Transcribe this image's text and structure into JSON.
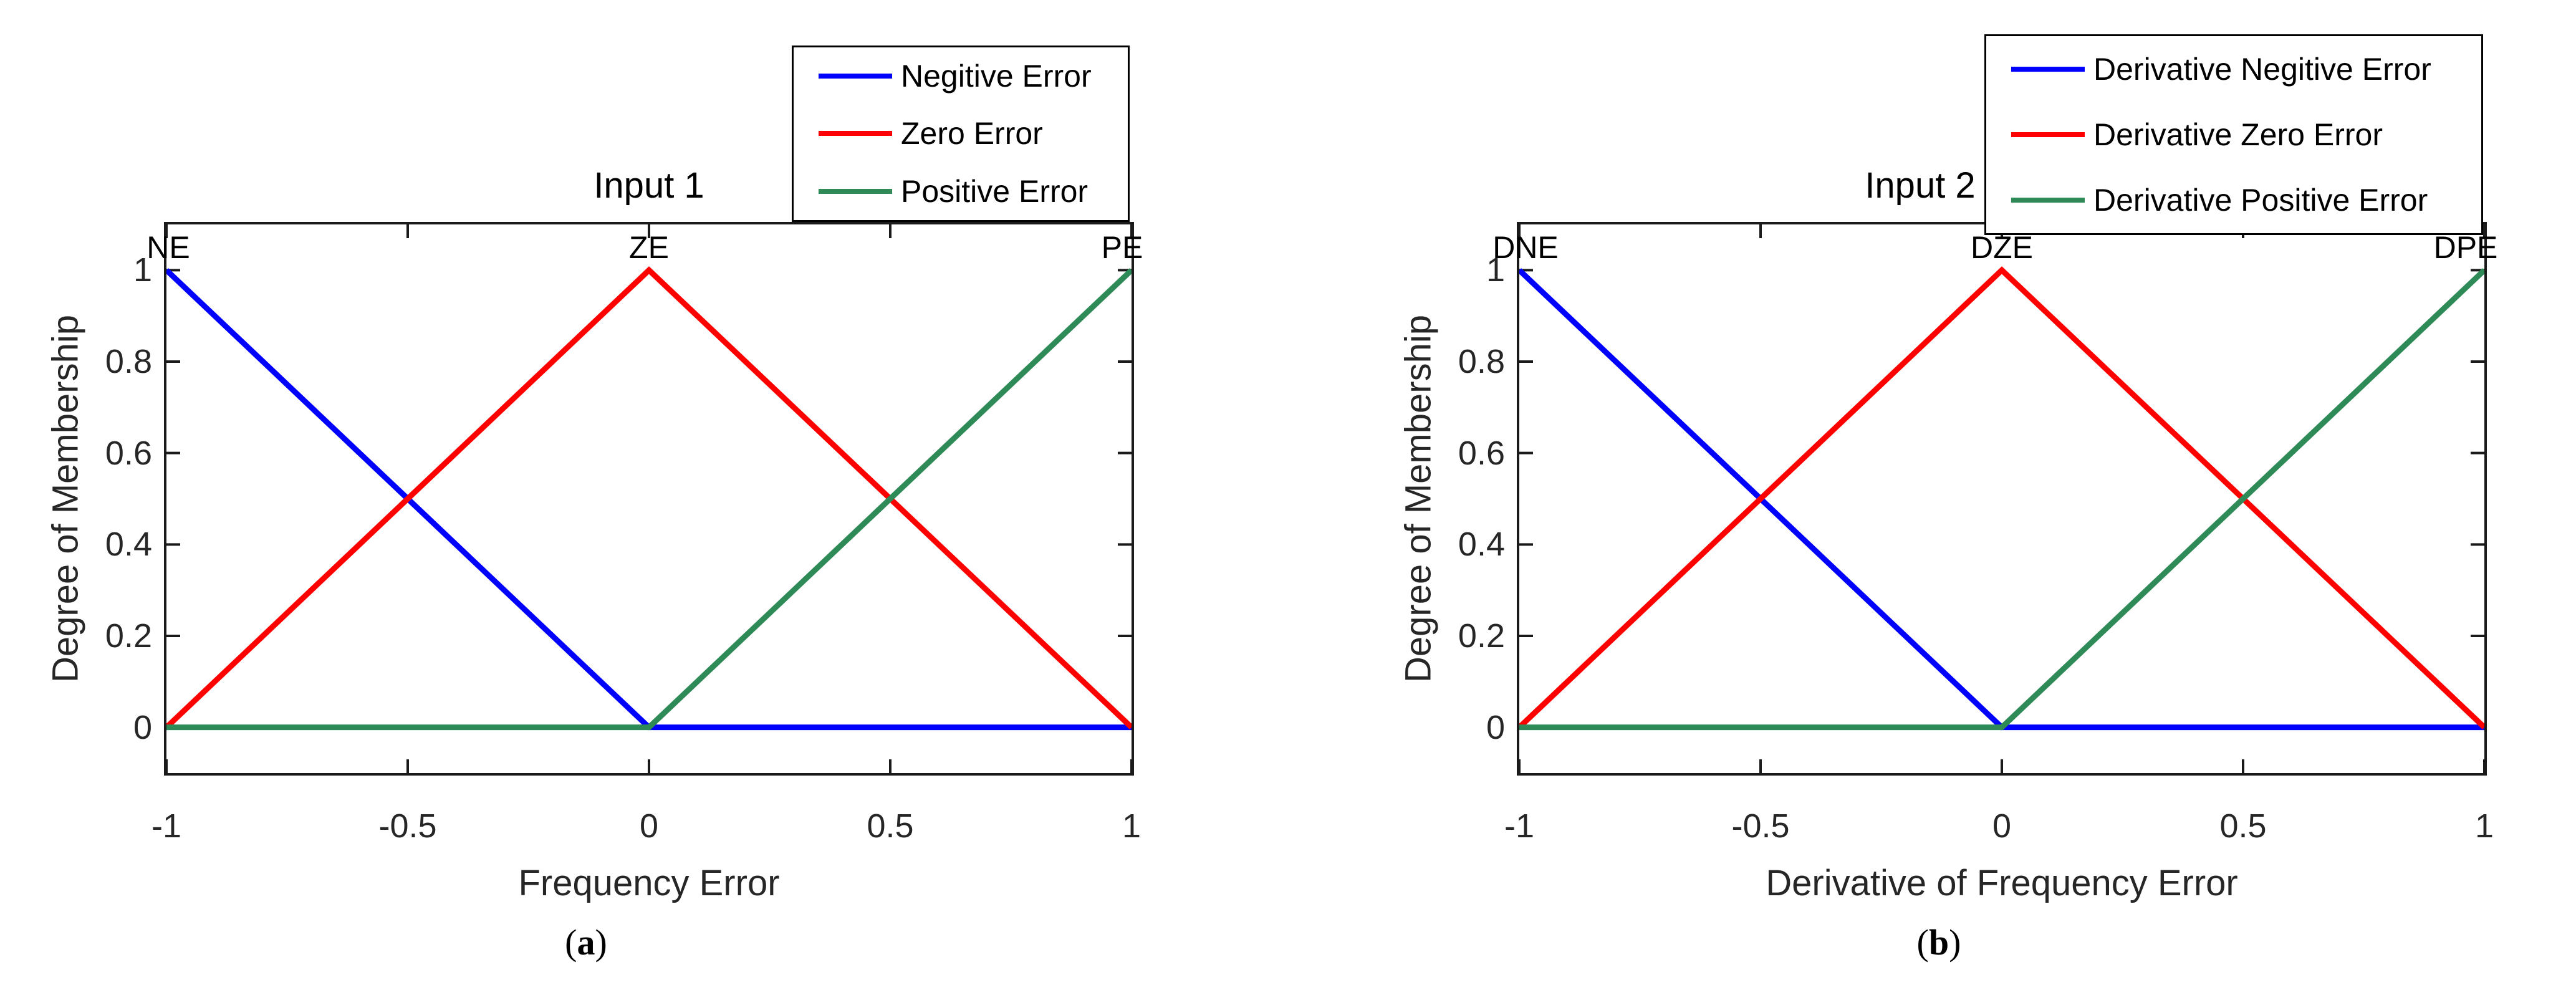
{
  "page": {
    "background": "#ffffff"
  },
  "chart_data": [
    {
      "type": "line",
      "title": "Input 1",
      "xlabel": "Frequency Error",
      "ylabel": "Degree of Membership",
      "caption": {
        "open": "(",
        "letter": "a",
        "close": ")"
      },
      "xlim": [
        -1,
        1
      ],
      "ylim": [
        -0.1,
        1.1
      ],
      "grid": false,
      "legend_position": "above plot, right-aligned",
      "x_ticks": {
        "values": [
          -1,
          -0.5,
          0,
          0.5,
          1
        ],
        "labels": [
          "-1",
          "-0.5",
          "0",
          "0.5",
          "1"
        ]
      },
      "y_ticks": {
        "values": [
          0,
          0.2,
          0.4,
          0.6,
          0.8,
          1
        ],
        "labels": [
          "0",
          "0.2",
          "0.4",
          "0.6",
          "0.8",
          "1"
        ]
      },
      "series": [
        {
          "name": "Negitive Error",
          "curve_label": "NE",
          "color": "#0000ff",
          "x": [
            -1,
            0,
            1
          ],
          "y": [
            1,
            0,
            0
          ]
        },
        {
          "name": "Zero Error",
          "curve_label": "ZE",
          "color": "#ff0000",
          "x": [
            -1,
            0,
            1
          ],
          "y": [
            0,
            1,
            0
          ]
        },
        {
          "name": "Positive Error",
          "curve_label": "PE",
          "color": "#2e8b57",
          "x": [
            -1,
            0,
            1
          ],
          "y": [
            0,
            0,
            1
          ]
        }
      ]
    },
    {
      "type": "line",
      "title": "Input 2",
      "xlabel": "Derivative of Frequency Error",
      "ylabel": "Degree of Membership",
      "caption": {
        "open": "(",
        "letter": "b",
        "close": ")"
      },
      "xlim": [
        -1,
        1
      ],
      "ylim": [
        -0.1,
        1.1
      ],
      "grid": false,
      "legend_position": "above plot, right-aligned",
      "x_ticks": {
        "values": [
          -1,
          -0.5,
          0,
          0.5,
          1
        ],
        "labels": [
          "-1",
          "-0.5",
          "0",
          "0.5",
          "1"
        ]
      },
      "y_ticks": {
        "values": [
          0,
          0.2,
          0.4,
          0.6,
          0.8,
          1
        ],
        "labels": [
          "0",
          "0.2",
          "0.4",
          "0.6",
          "0.8",
          "1"
        ]
      },
      "series": [
        {
          "name": "Derivative Negitive Error",
          "curve_label": "DNE",
          "color": "#0000ff",
          "x": [
            -1,
            0,
            1
          ],
          "y": [
            1,
            0,
            0
          ]
        },
        {
          "name": "Derivative Zero Error",
          "curve_label": "DZE",
          "color": "#ff0000",
          "x": [
            -1,
            0,
            1
          ],
          "y": [
            0,
            1,
            0
          ]
        },
        {
          "name": "Derivative Positive Error",
          "curve_label": "DPE",
          "color": "#2e8b57",
          "x": [
            -1,
            0,
            1
          ],
          "y": [
            0,
            0,
            1
          ]
        }
      ]
    }
  ]
}
